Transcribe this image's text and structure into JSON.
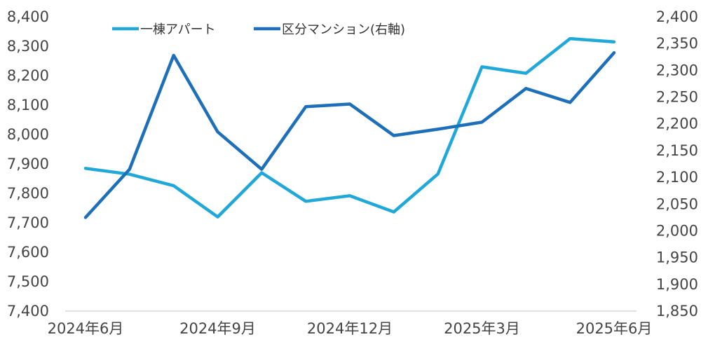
{
  "chart_data": {
    "type": "line",
    "x": [
      "2024年6月",
      "2024年7月",
      "2024年8月",
      "2024年9月",
      "2024年10月",
      "2024年11月",
      "2024年12月",
      "2025年1月",
      "2025年2月",
      "2025年3月",
      "2025年4月",
      "2025年5月",
      "2025年6月"
    ],
    "x_tick_labels": [
      "2024年6月",
      "2024年9月",
      "2024年12月",
      "2025年3月",
      "2025年6月"
    ],
    "series": [
      {
        "name": "一棟アパート",
        "axis": "left",
        "color": "#1fa8d8",
        "values": [
          7885,
          7865,
          7826,
          7720,
          7870,
          7773,
          7792,
          7737,
          7866,
          8230,
          8208,
          8326,
          8315
        ]
      },
      {
        "name": "区分マンション(右軸)",
        "axis": "right",
        "color": "#1c6fb8",
        "values": [
          2025,
          2115,
          2328,
          2185,
          2115,
          2232,
          2237,
          2178,
          2190,
          2203,
          2266,
          2240,
          2333
        ]
      }
    ],
    "y_left": {
      "min": 7400,
      "max": 8400,
      "step": 100,
      "ticks": [
        "7,400",
        "7,500",
        "7,600",
        "7,700",
        "7,800",
        "7,900",
        "8,000",
        "8,100",
        "8,200",
        "8,300",
        "8,400"
      ]
    },
    "y_right": {
      "min": 1850,
      "max": 2400,
      "step": 50,
      "ticks": [
        "1,850",
        "1,900",
        "1,950",
        "2,000",
        "2,050",
        "2,100",
        "2,150",
        "2,200",
        "2,250",
        "2,300",
        "2,350",
        "2,400"
      ]
    },
    "legend_position": "top",
    "grid": false
  }
}
